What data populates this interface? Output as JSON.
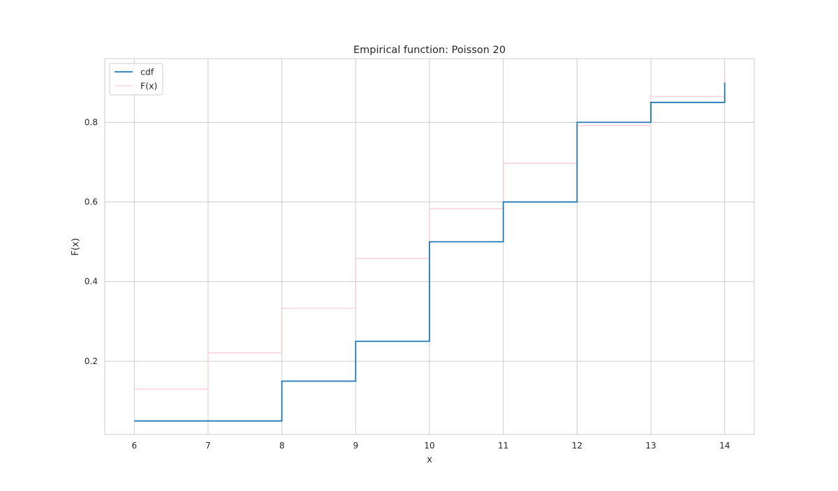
{
  "chart_data": {
    "type": "line",
    "title": "Empirical function: Poisson 20",
    "xlabel": "x",
    "ylabel": "F(x)",
    "xlim": [
      5.6,
      14.4
    ],
    "ylim": [
      0.016,
      0.96
    ],
    "xticks": [
      6,
      7,
      8,
      9,
      10,
      11,
      12,
      13,
      14
    ],
    "yticks": [
      0.2,
      0.4,
      0.6,
      0.8
    ],
    "ytick_labels": [
      "0.2",
      "0.4",
      "0.6",
      "0.8"
    ],
    "grid": true,
    "legend": {
      "position": "top-left"
    },
    "series": [
      {
        "name": "cdf",
        "step": "post",
        "color": "#1f77b4",
        "x": [
          6,
          7,
          8,
          9,
          10,
          11,
          12,
          13,
          14
        ],
        "y": [
          0.05,
          0.05,
          0.15,
          0.25,
          0.5,
          0.6,
          0.8,
          0.85,
          0.9
        ]
      },
      {
        "name": "F(x)",
        "step": "post",
        "color": "#ffc0cb",
        "x": [
          6,
          7,
          8,
          9,
          10,
          11,
          12,
          13,
          14
        ],
        "y": [
          0.13,
          0.221,
          0.333,
          0.458,
          0.583,
          0.697,
          0.792,
          0.865,
          0.921
        ]
      }
    ]
  }
}
